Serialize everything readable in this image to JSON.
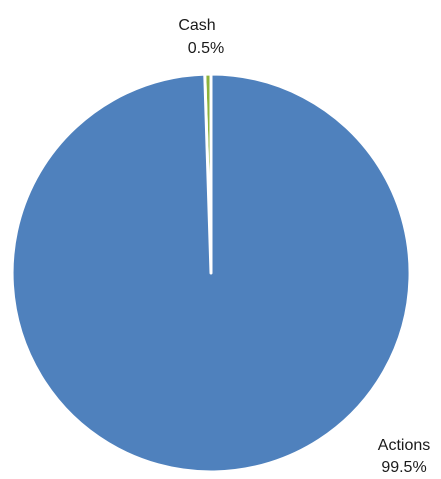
{
  "chart_data": {
    "type": "pie",
    "categories": [
      "Cash",
      "Actions"
    ],
    "values": [
      0.5,
      99.5
    ],
    "value_labels": [
      "0.5%",
      "99.5%"
    ],
    "colors": [
      "#8CB33C",
      "#4F81BD"
    ],
    "start_angle_deg": -1.8,
    "direction": "clockwise",
    "legend": "none",
    "title": ""
  }
}
